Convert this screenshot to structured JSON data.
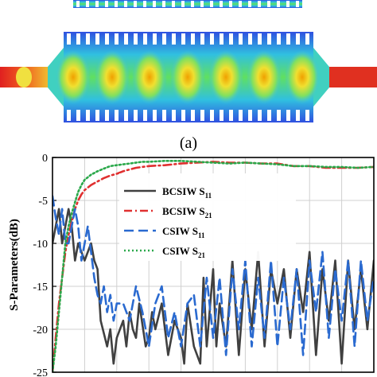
{
  "figure_caption": "(a)",
  "chart_data": {
    "type": "line",
    "title": "",
    "xlabel": "",
    "ylabel": "S-Parameters(dB)",
    "ylim": [
      -25,
      0
    ],
    "yticks": [
      0,
      -5,
      -10,
      -15,
      -20,
      -25
    ],
    "xlim": [
      0,
      100
    ],
    "grid": true,
    "legend_position": "top-right",
    "series": [
      {
        "name": "BCSIW S",
        "sub": "11",
        "color": "#404040",
        "dash": "solid",
        "x": [
          0,
          2,
          3,
          4,
          5,
          6,
          7,
          8,
          9,
          10,
          11,
          12,
          13,
          14,
          15,
          17,
          18,
          19,
          20,
          22,
          23,
          24,
          25,
          26,
          27,
          29,
          30,
          31,
          32,
          34,
          36,
          38,
          40,
          41,
          42,
          44,
          46,
          47,
          48,
          50,
          51,
          52,
          54,
          56,
          58,
          60,
          62,
          64,
          66,
          68,
          70,
          72,
          74,
          76,
          78,
          80,
          82,
          84,
          86,
          88,
          90,
          92,
          94,
          96,
          98,
          100
        ],
        "y": [
          -10,
          -6,
          -10,
          -8,
          -6,
          -8,
          -12,
          -10,
          -11,
          -12,
          -11,
          -10,
          -12,
          -13,
          -19,
          -22,
          -20,
          -24,
          -21,
          -19,
          -22,
          -18,
          -20,
          -21,
          -17,
          -22,
          -21,
          -18,
          -20,
          -17,
          -23,
          -19,
          -21,
          -24,
          -17,
          -22,
          -24,
          -14,
          -22,
          -13,
          -22,
          -17,
          -22,
          -12,
          -23,
          -13,
          -20,
          -11,
          -22,
          -13,
          -17,
          -13,
          -21,
          -13,
          -18,
          -11,
          -23,
          -13,
          -19,
          -12,
          -24,
          -12,
          -20,
          -13,
          -20,
          -12
        ]
      },
      {
        "name": "BCSIW S",
        "sub": "21",
        "color": "#e03030",
        "dash": "10,4,2,4",
        "x": [
          0,
          1,
          2,
          3,
          4,
          5,
          6,
          7,
          8,
          9,
          10,
          12,
          14,
          16,
          18,
          20,
          22,
          24,
          26,
          28,
          30,
          35,
          40,
          45,
          50,
          55,
          60,
          65,
          70,
          75,
          80,
          85,
          90,
          95,
          100
        ],
        "y": [
          -25,
          -21,
          -17,
          -14,
          -11,
          -9,
          -7.5,
          -6,
          -5,
          -4.3,
          -3.8,
          -3.2,
          -2.8,
          -2.4,
          -2.1,
          -1.9,
          -1.6,
          -1.4,
          -1.2,
          -1.1,
          -1,
          -0.9,
          -0.7,
          -0.6,
          -0.5,
          -0.6,
          -0.6,
          -0.7,
          -0.7,
          -1,
          -1,
          -1.2,
          -1.2,
          -1.2,
          -1.1
        ]
      },
      {
        "name": "CSIW S",
        "sub": "11",
        "color": "#2a6ad0",
        "dash": "12,6",
        "x": [
          0,
          1,
          2,
          3,
          4,
          5,
          6,
          7,
          8,
          9,
          10,
          11,
          12,
          13,
          14,
          15,
          16,
          17,
          18,
          19,
          20,
          22,
          24,
          26,
          28,
          30,
          32,
          34,
          36,
          38,
          40,
          42,
          44,
          46,
          48,
          50,
          52,
          54,
          56,
          58,
          60,
          62,
          64,
          66,
          68,
          70,
          72,
          74,
          76,
          78,
          80,
          82,
          84,
          86,
          88,
          90,
          92,
          94,
          96,
          98,
          100
        ],
        "y": [
          -4.5,
          -7,
          -9,
          -6,
          -10,
          -10,
          -8,
          -6,
          -8,
          -12,
          -10,
          -8,
          -11,
          -14,
          -16,
          -17,
          -15,
          -18,
          -16,
          -19,
          -17,
          -17,
          -19,
          -15,
          -18,
          -22,
          -17,
          -15,
          -21,
          -18,
          -22,
          -17,
          -16,
          -22,
          -14,
          -21,
          -14,
          -23,
          -13,
          -20,
          -12,
          -22,
          -14,
          -21,
          -12,
          -22,
          -14,
          -20,
          -13,
          -23,
          -12,
          -18,
          -11,
          -21,
          -13,
          -19,
          -12,
          -22,
          -12,
          -19,
          -14
        ]
      },
      {
        "name": "CSIW S",
        "sub": "21",
        "color": "#2aa84a",
        "dash": "2,3",
        "x": [
          0,
          1,
          2,
          3,
          4,
          5,
          6,
          7,
          8,
          9,
          10,
          12,
          14,
          16,
          18,
          20,
          22,
          24,
          26,
          28,
          30,
          35,
          40,
          45,
          50,
          55,
          60,
          65,
          70,
          75,
          80,
          85,
          90,
          95,
          100
        ],
        "y": [
          -25,
          -22,
          -18,
          -14,
          -10,
          -8,
          -6.5,
          -5.2,
          -4,
          -3.2,
          -2.6,
          -2,
          -1.6,
          -1.3,
          -1,
          -0.9,
          -0.8,
          -0.7,
          -0.6,
          -0.5,
          -0.5,
          -0.4,
          -0.4,
          -0.5,
          -0.6,
          -0.7,
          -0.6,
          -0.7,
          -0.8,
          -1,
          -1,
          -1.1,
          -1.1,
          -1.2,
          -1.1
        ]
      }
    ]
  }
}
